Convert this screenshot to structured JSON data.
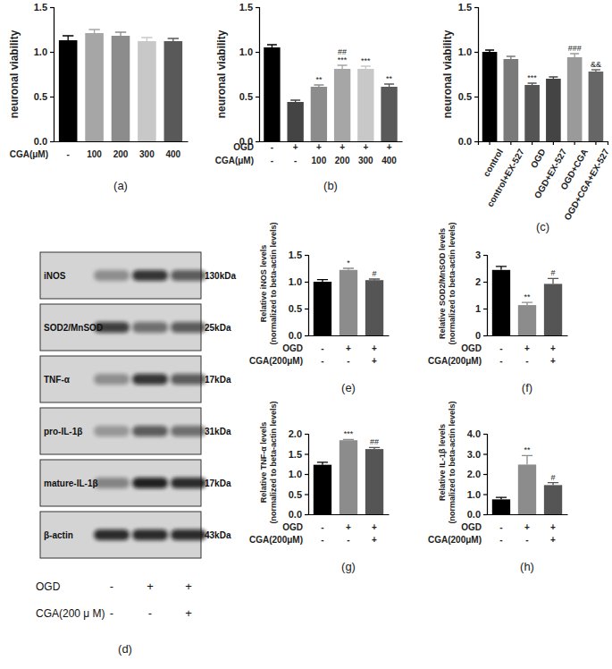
{
  "chart_data": [
    {
      "type": "bar",
      "title": "(a)",
      "y_label": "neuronal viability",
      "category_rows": [
        "CGA(μM)"
      ],
      "categories": [
        [
          "-"
        ],
        [
          "100"
        ],
        [
          "200"
        ],
        [
          "300"
        ],
        [
          "400"
        ]
      ],
      "values": [
        1.13,
        1.21,
        1.18,
        1.12,
        1.12
      ],
      "errors": [
        0.05,
        0.04,
        0.04,
        0.04,
        0.03
      ],
      "colors": [
        "#000000",
        "#a6a6a6",
        "#8c8c8c",
        "#c8c8c8",
        "#595959"
      ],
      "ylim": [
        0,
        1.5
      ],
      "yticks": [
        {
          "value": 0,
          "label": "0.0"
        },
        {
          "value": 0.5,
          "label": "0.5"
        },
        {
          "value": 1,
          "label": "1.0"
        },
        {
          "value": 1.5,
          "label": "1.5"
        }
      ]
    },
    {
      "type": "bar",
      "title": "(b)",
      "y_label": "neuronal viability",
      "category_rows": [
        "OGD",
        "CGA(μM)"
      ],
      "categories": [
        [
          "-",
          "-"
        ],
        [
          "+",
          "-"
        ],
        [
          "+",
          "100"
        ],
        [
          "+",
          "200"
        ],
        [
          "+",
          "300"
        ],
        [
          "+",
          "400"
        ]
      ],
      "values": [
        1.05,
        0.44,
        0.61,
        0.81,
        0.81,
        0.61
      ],
      "errors": [
        0.03,
        0.02,
        0.02,
        0.04,
        0.03,
        0.03
      ],
      "colors": [
        "#000000",
        "#444444",
        "#8c8c8c",
        "#a6a6a6",
        "#c8c8c8",
        "#595959"
      ],
      "annotations": [
        [],
        [],
        [
          "**"
        ],
        [
          "##",
          "***"
        ],
        [
          "***"
        ],
        [
          "**"
        ]
      ],
      "ylim": [
        0,
        1.5
      ],
      "yticks": [
        {
          "value": 0,
          "label": "0.0"
        },
        {
          "value": 0.5,
          "label": "0.5"
        },
        {
          "value": 1,
          "label": "1.0"
        },
        {
          "value": 1.5,
          "label": "1.5"
        }
      ]
    },
    {
      "type": "bar",
      "title": "(c)",
      "y_label": "neuronal viability",
      "categories": [
        "control",
        "control+EX-527",
        "OGD",
        "OGD+EX-527",
        "OGD+CGA",
        "OGD+CGA+EX-527"
      ],
      "values": [
        1.0,
        0.92,
        0.63,
        0.7,
        0.94,
        0.78
      ],
      "errors": [
        0.02,
        0.03,
        0.02,
        0.02,
        0.04,
        0.02
      ],
      "colors": [
        "#000000",
        "#7a7a7a",
        "#555555",
        "#444444",
        "#9a9a9a",
        "#666666"
      ],
      "annotations": [
        [],
        [],
        [
          "***"
        ],
        [],
        [
          "###"
        ],
        [
          "&&"
        ]
      ],
      "ylim": [
        0,
        1.5
      ],
      "yticks": [
        {
          "value": 0,
          "label": "0.0"
        },
        {
          "value": 0.5,
          "label": "0.5"
        },
        {
          "value": 1,
          "label": "1.0"
        },
        {
          "value": 1.5,
          "label": "1.5"
        }
      ]
    },
    {
      "type": "bar",
      "title": "(e)",
      "y_label": [
        "Relative iNOS levels",
        "(normalized to beta-actin levels)"
      ],
      "category_rows": [
        "OGD",
        "CGA(200μM)"
      ],
      "categories": [
        [
          "-",
          "-"
        ],
        [
          "+",
          "-"
        ],
        [
          "+",
          "+"
        ]
      ],
      "values": [
        1.0,
        1.22,
        1.03
      ],
      "errors": [
        0.04,
        0.03,
        0.02
      ],
      "colors": [
        "#000000",
        "#8c8c8c",
        "#555555"
      ],
      "annotations": [
        [],
        [
          "*"
        ],
        [
          "#"
        ]
      ],
      "ylim": [
        0,
        1.5
      ],
      "yticks": [
        {
          "value": 0,
          "label": "0.0"
        },
        {
          "value": 0.5,
          "label": "0.5"
        },
        {
          "value": 1,
          "label": "1.0"
        },
        {
          "value": 1.5,
          "label": "1.5"
        }
      ]
    },
    {
      "type": "bar",
      "title": "(f)",
      "y_label": [
        "Relative SOD2/MnSOD levels",
        "(normalized to beta-actin levels)"
      ],
      "category_rows": [
        "OGD",
        "CGA(200μM)"
      ],
      "categories": [
        [
          "-",
          "-"
        ],
        [
          "+",
          "-"
        ],
        [
          "+",
          "+"
        ]
      ],
      "values": [
        2.44,
        1.13,
        1.92
      ],
      "errors": [
        0.13,
        0.1,
        0.2
      ],
      "colors": [
        "#000000",
        "#8c8c8c",
        "#555555"
      ],
      "annotations": [
        [],
        [
          "**"
        ],
        [
          "#"
        ]
      ],
      "ylim": [
        0,
        3
      ],
      "yticks": [
        0,
        1,
        2,
        3
      ]
    },
    {
      "type": "bar",
      "title": "(g)",
      "y_label": [
        "Relative TNF-α levels",
        "(normalized to beta-actin levels)"
      ],
      "category_rows": [
        "OGD",
        "CGA(200μM)"
      ],
      "categories": [
        [
          "-",
          "-"
        ],
        [
          "+",
          "-"
        ],
        [
          "+",
          "+"
        ]
      ],
      "values": [
        1.23,
        1.84,
        1.62
      ],
      "errors": [
        0.06,
        0.02,
        0.04
      ],
      "colors": [
        "#000000",
        "#8c8c8c",
        "#555555"
      ],
      "annotations": [
        [],
        [
          "***"
        ],
        [
          "##"
        ]
      ],
      "ylim": [
        0,
        2
      ],
      "yticks": [
        {
          "value": 0,
          "label": "0.0"
        },
        {
          "value": 0.5,
          "label": "0.5"
        },
        {
          "value": 1,
          "label": "1.0"
        },
        {
          "value": 1.5,
          "label": "1.5"
        },
        {
          "value": 2,
          "label": "2.0"
        }
      ]
    },
    {
      "type": "bar",
      "title": "(h)",
      "y_label": [
        "Relative IL-1β levels",
        "(normalized to beta-actin levels)"
      ],
      "category_rows": [
        "OGD",
        "CGA(200μM)"
      ],
      "categories": [
        [
          "-",
          "-"
        ],
        [
          "+",
          "-"
        ],
        [
          "+",
          "+"
        ]
      ],
      "values": [
        0.74,
        2.47,
        1.45
      ],
      "errors": [
        0.1,
        0.45,
        0.12
      ],
      "colors": [
        "#000000",
        "#8c8c8c",
        "#555555"
      ],
      "annotations": [
        [],
        [
          "**"
        ],
        [
          "#"
        ]
      ],
      "ylim": [
        0,
        4
      ],
      "yticks": [
        {
          "value": 0,
          "label": "0.0"
        },
        {
          "value": 1,
          "label": "1.0"
        },
        {
          "value": 2,
          "label": "2.0"
        },
        {
          "value": 3,
          "label": "3.0"
        },
        {
          "value": 4,
          "label": "4.0"
        }
      ]
    }
  ],
  "blot": {
    "title": "(d)",
    "rows": [
      {
        "label": "iNOS",
        "size": "130kDa",
        "intensity": [
          0.35,
          0.8,
          0.6
        ]
      },
      {
        "label": "SOD2/MnSOD",
        "size": "25kDa",
        "intensity": [
          0.75,
          0.5,
          0.6
        ]
      },
      {
        "label": "TNF-α",
        "size": "17kDa",
        "intensity": [
          0.35,
          0.8,
          0.6
        ]
      },
      {
        "label": "pro-IL-1β",
        "size": "31kDa",
        "intensity": [
          0.3,
          0.6,
          0.5
        ]
      },
      {
        "label": "mature-IL-1β",
        "size": "17kDa",
        "intensity": [
          0.4,
          0.9,
          0.85
        ]
      },
      {
        "label": "β-actin",
        "size": "43kDa",
        "intensity": [
          0.85,
          0.85,
          0.85
        ]
      }
    ],
    "lane_rows": [
      {
        "label": "OGD",
        "values": [
          "-",
          "+",
          "+"
        ]
      },
      {
        "label": "CGA(200 μ M)",
        "values": [
          "-",
          "-",
          "+"
        ]
      }
    ]
  }
}
